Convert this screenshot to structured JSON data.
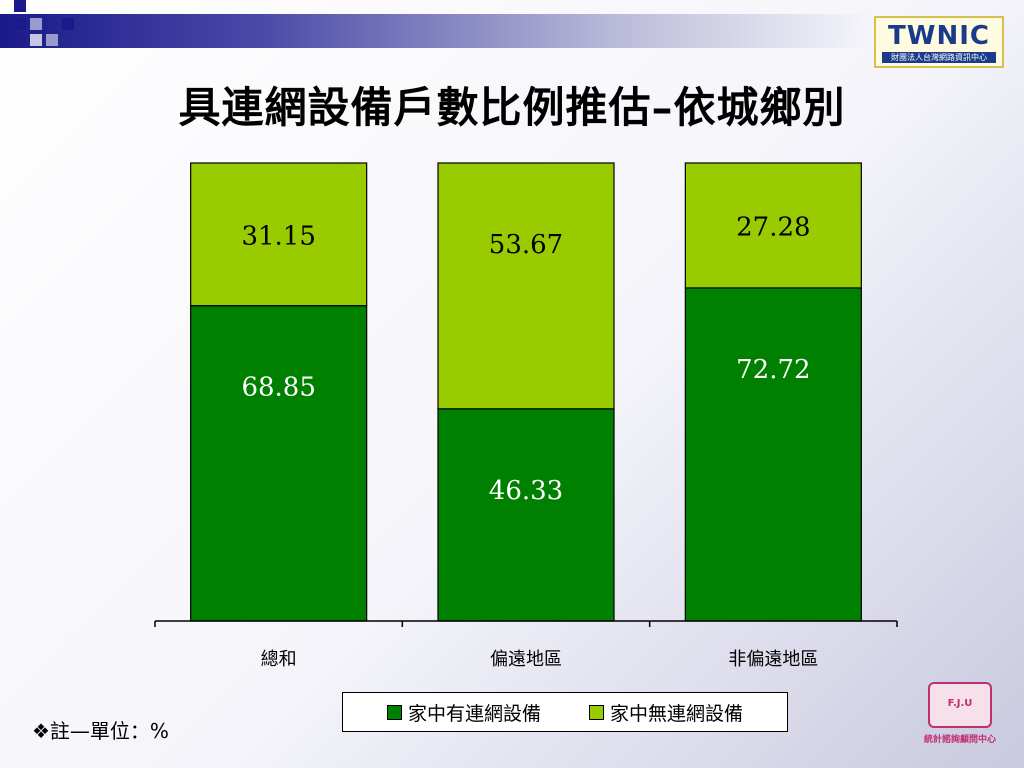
{
  "title": "具連網設備戶數比例推估–依城鄉別",
  "logo": {
    "mark": "TWNIC",
    "subtitle": "財團法人台灣網路資訊中心"
  },
  "note": "❖註—單位：%",
  "fju_logo": {
    "badge": "F.J.U",
    "text": "統計諮詢顧問中心"
  },
  "colors": {
    "accent": "#1a1a8a",
    "series_with": "#008000",
    "series_without": "#99cc00"
  },
  "legend": [
    {
      "label": "家中有連網設備",
      "color": "#008000"
    },
    {
      "label": "家中無連網設備",
      "color": "#99cc00"
    }
  ],
  "chart_data": {
    "type": "bar",
    "stacked": true,
    "categories": [
      "總和",
      "偏遠地區",
      "非偏遠地區"
    ],
    "series": [
      {
        "name": "家中有連網設備",
        "values": [
          68.85,
          46.33,
          72.72
        ]
      },
      {
        "name": "家中無連網設備",
        "values": [
          31.15,
          53.67,
          27.28
        ]
      }
    ],
    "ylim": [
      0,
      100
    ],
    "xlabel": "",
    "ylabel": "",
    "legend_position": "bottom",
    "grid": false
  }
}
